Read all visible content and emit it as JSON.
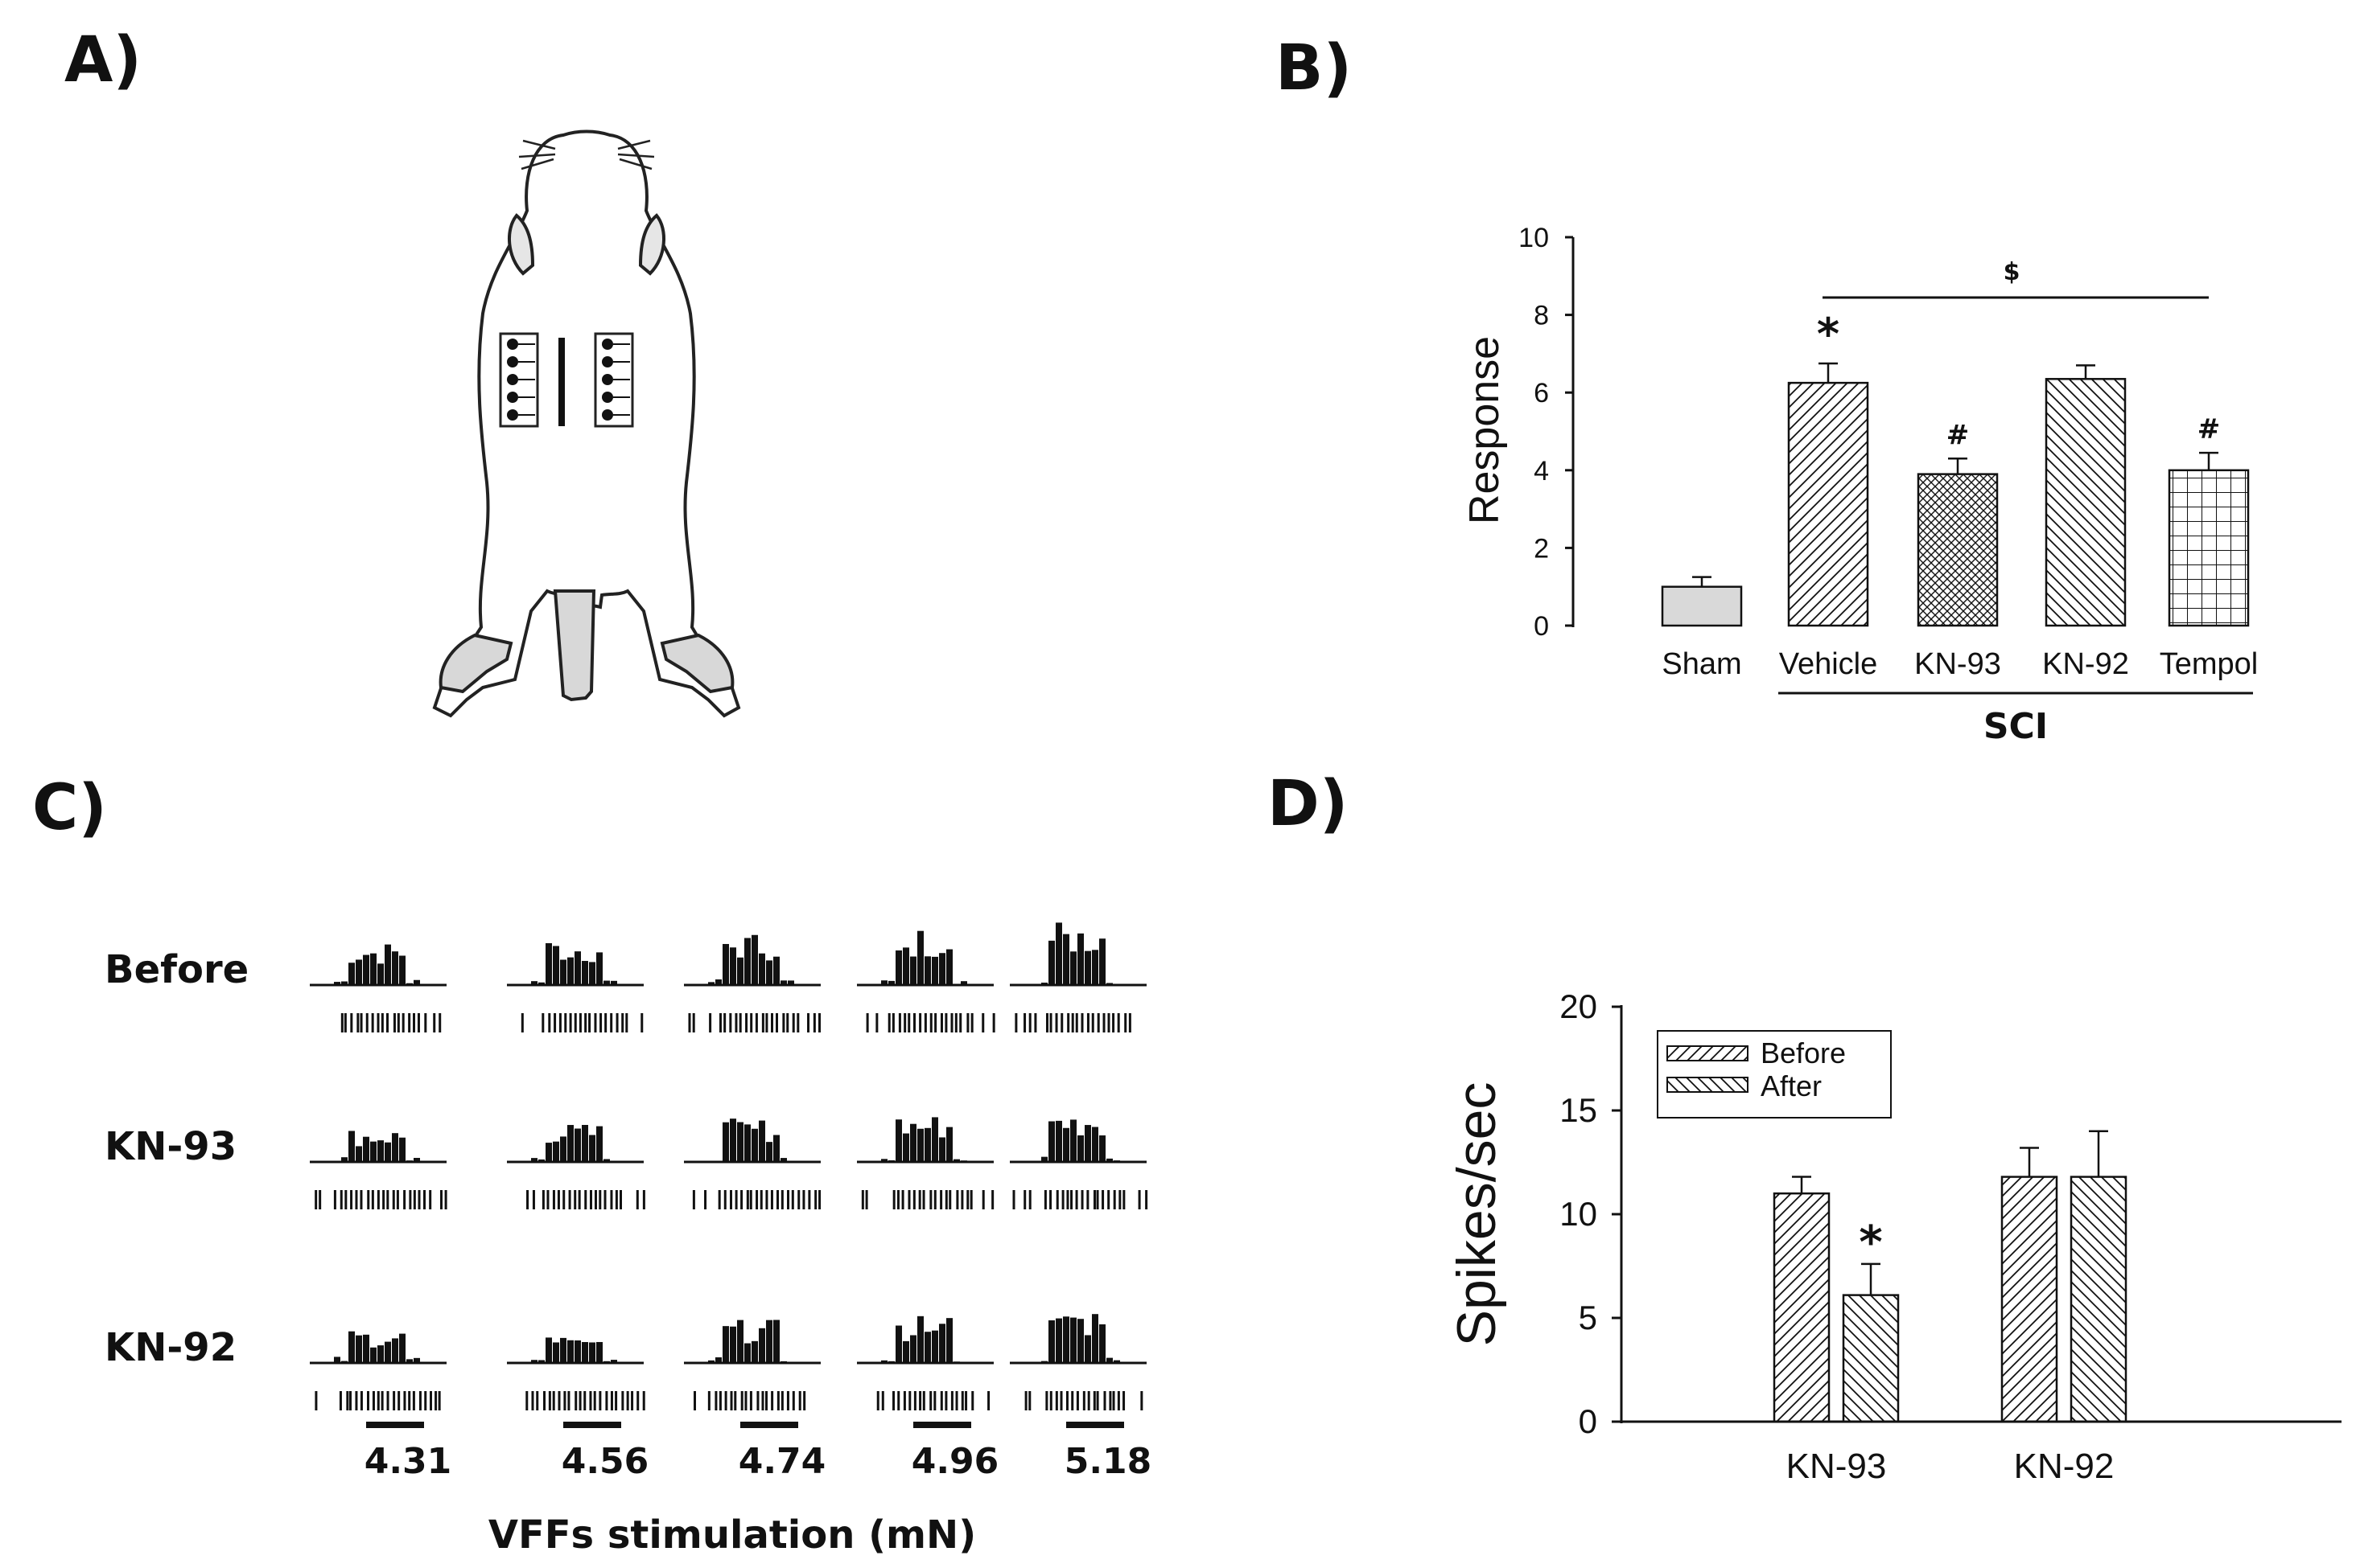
{
  "panels": {
    "a": "A)",
    "b": "B)",
    "c": "C)",
    "d": "D)"
  },
  "colors": {
    "ink": "#111111",
    "sham_fill": "#d9d9d9"
  },
  "chart_data": [
    {
      "panel": "B",
      "type": "bar",
      "title": "",
      "xlabel": "SCI",
      "ylabel": "Response",
      "ylim": [
        0,
        10
      ],
      "yticks": [
        "0",
        "2",
        "4",
        "6",
        "8",
        "10"
      ],
      "categories": [
        "Sham",
        "Vehicle",
        "KN-93",
        "KN-92",
        "Tempol"
      ],
      "values": [
        1.0,
        6.25,
        3.9,
        6.35,
        4.0
      ],
      "errors": [
        0.25,
        0.5,
        0.4,
        0.35,
        0.45
      ],
      "patterns": [
        "solid",
        "diag-right",
        "crosshatch",
        "diag-left",
        "grid"
      ],
      "markers": [
        "",
        "*",
        "#",
        "",
        "#"
      ],
      "group_bracket": {
        "label": "$",
        "from": "Vehicle",
        "to": "Tempol"
      }
    },
    {
      "panel": "C",
      "type": "raster",
      "rows": [
        "Before",
        "KN-93",
        "KN-92"
      ],
      "stimuli": [
        "4.31",
        "4.56",
        "4.74",
        "4.96",
        "5.18"
      ],
      "xlabel": "VFFs stimulation (mN)"
    },
    {
      "panel": "D",
      "type": "bar",
      "title": "",
      "xlabel": "",
      "ylabel": "Spikes/sec",
      "ylim": [
        0,
        20
      ],
      "yticks": [
        "0",
        "5",
        "10",
        "15",
        "20"
      ],
      "categories": [
        "KN-93",
        "KN-92"
      ],
      "series": [
        {
          "name": "Before",
          "values": [
            11.0,
            11.8
          ],
          "errors": [
            0.8,
            1.4
          ],
          "pattern": "diag-right"
        },
        {
          "name": "After",
          "values": [
            6.1,
            11.8
          ],
          "errors": [
            1.5,
            2.2
          ],
          "pattern": "diag-left"
        }
      ],
      "markers": [
        [
          "",
          "*"
        ],
        [
          "",
          ""
        ]
      ],
      "legend": "top-left"
    }
  ]
}
